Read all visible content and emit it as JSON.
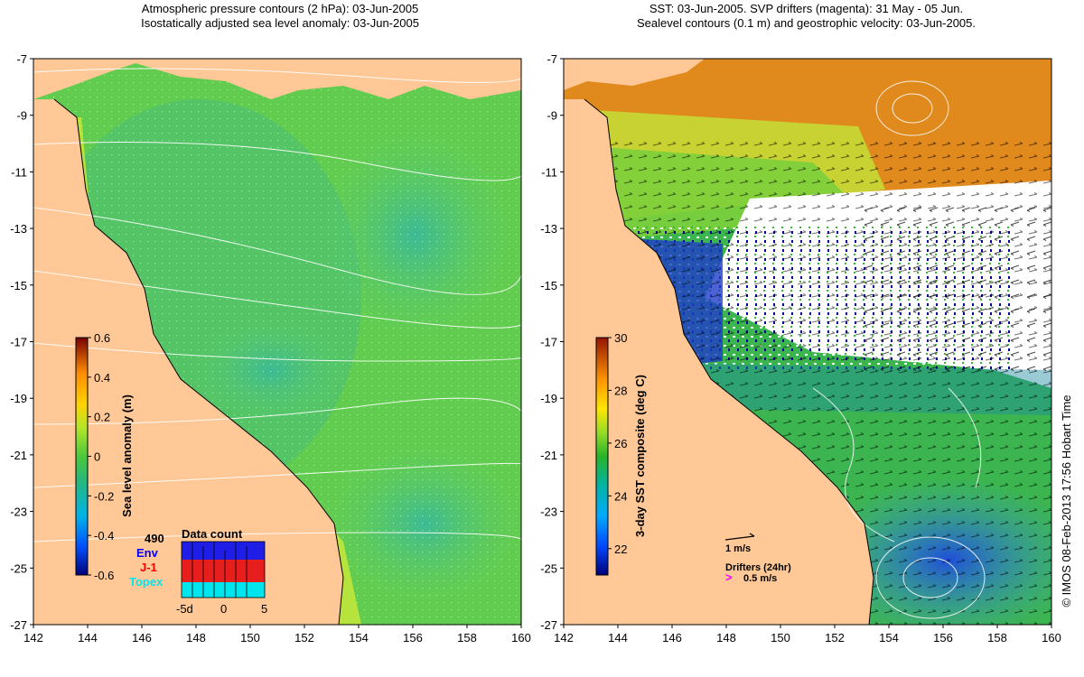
{
  "left_panel": {
    "title_line1": "Atmospheric pressure contours (2 hPa): 03-Jun-2005",
    "title_line2": "Isostatically adjusted sea level anomaly: 03-Jun-2005",
    "x_ticks": [
      "142",
      "144",
      "146",
      "148",
      "150",
      "152",
      "154",
      "156",
      "158",
      "160"
    ],
    "y_ticks": [
      "-7",
      "-9",
      "-11",
      "-13",
      "-15",
      "-17",
      "-19",
      "-21",
      "-23",
      "-25",
      "-27"
    ],
    "colorbar": {
      "label": "Sea level anomaly (m)",
      "ticks": [
        "0.6",
        "0.4",
        "0.2",
        "0",
        "-0.2",
        "-0.4",
        "-0.6"
      ],
      "range": [
        -0.6,
        0.6
      ]
    },
    "data_count": {
      "title": "Data count",
      "total": "490",
      "legend": [
        {
          "label": "Env",
          "color": "#0000ff"
        },
        {
          "label": "J-1",
          "color": "#ff0000"
        },
        {
          "label": "Topex",
          "color": "#00e5ee"
        }
      ],
      "x_ticks": [
        "-5d",
        "0",
        "5"
      ]
    }
  },
  "right_panel": {
    "title_line1": "SST: 03-Jun-2005. SVP drifters (magenta): 31 May - 05 Jun.",
    "title_line2": "Sealevel contours (0.1 m) and geostrophic velocity: 03-Jun-2005.",
    "x_ticks": [
      "142",
      "144",
      "146",
      "148",
      "150",
      "152",
      "154",
      "156",
      "158",
      "160"
    ],
    "y_ticks": [
      "-7",
      "-9",
      "-11",
      "-13",
      "-15",
      "-17",
      "-19",
      "-21",
      "-23",
      "-25",
      "-27"
    ],
    "colorbar": {
      "label": "3-day SST composite (deg C)",
      "ticks": [
        "30",
        "28",
        "26",
        "24",
        "22"
      ],
      "range": [
        21,
        30
      ]
    },
    "velocity_scale_label": "1 m/s",
    "drifters_label": "Drifters (24hr)",
    "drifter_speed_label": "0.5 m/s"
  },
  "credit": "© IMOS 08-Feb-2013 17:56 Hobart Time",
  "colors": {
    "land": "#ffc896",
    "ocean_green": "#7ad64a",
    "ocean_teal": "#4fc287",
    "coast_yellow": "#d4ea3a"
  }
}
